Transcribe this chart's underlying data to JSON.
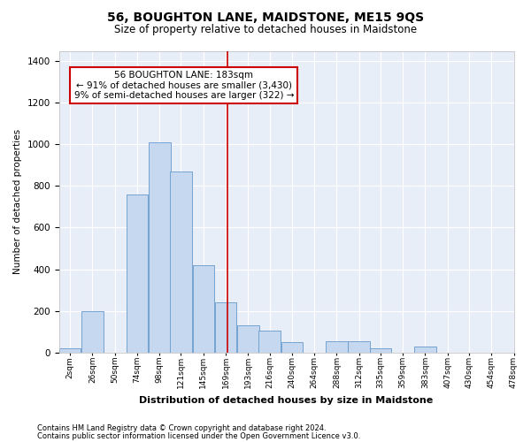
{
  "title": "56, BOUGHTON LANE, MAIDSTONE, ME15 9QS",
  "subtitle": "Size of property relative to detached houses in Maidstone",
  "xlabel": "Distribution of detached houses by size in Maidstone",
  "ylabel": "Number of detached properties",
  "footer_line1": "Contains HM Land Registry data © Crown copyright and database right 2024.",
  "footer_line2": "Contains public sector information licensed under the Open Government Licence v3.0.",
  "annotation_line1": "56 BOUGHTON LANE: 183sqm",
  "annotation_line2": "← 91% of detached houses are smaller (3,430)",
  "annotation_line3": "9% of semi-detached houses are larger (322) →",
  "property_size": 183,
  "bar_color": "#c5d8f0",
  "bar_edge_color": "#6699cc",
  "vline_color": "#cc0000",
  "plot_bg_color": "#e8eef8",
  "categories": [
    "2sqm",
    "26sqm",
    "50sqm",
    "74sqm",
    "98sqm",
    "121sqm",
    "145sqm",
    "169sqm",
    "193sqm",
    "216sqm",
    "240sqm",
    "264sqm",
    "288sqm",
    "312sqm",
    "335sqm",
    "359sqm",
    "383sqm",
    "407sqm",
    "430sqm",
    "454sqm",
    "478sqm"
  ],
  "bin_starts": [
    2,
    26,
    50,
    74,
    98,
    121,
    145,
    169,
    193,
    216,
    240,
    264,
    288,
    312,
    335,
    359,
    383,
    407,
    430,
    454,
    478
  ],
  "bin_width": 24,
  "values": [
    20,
    200,
    0,
    760,
    1010,
    870,
    420,
    240,
    130,
    105,
    50,
    0,
    55,
    55,
    20,
    0,
    30,
    0,
    0,
    0,
    0
  ],
  "ylim": [
    0,
    1450
  ],
  "yticks": [
    0,
    200,
    400,
    600,
    800,
    1000,
    1200,
    1400
  ]
}
